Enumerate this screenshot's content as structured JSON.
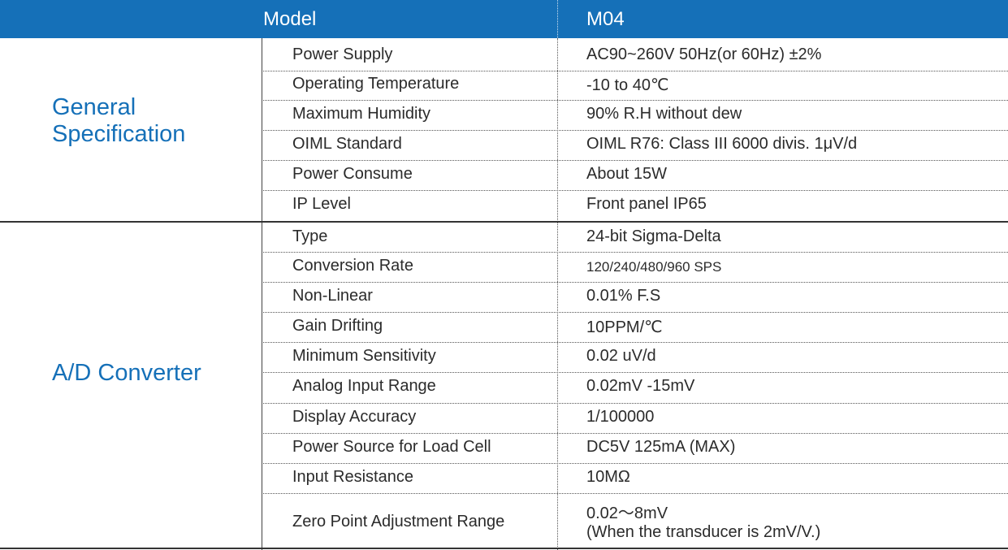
{
  "header": {
    "model_label": "Model",
    "model_value": "M04"
  },
  "sections": [
    {
      "title_line1": "General",
      "title_line2": "Specification",
      "rows": [
        {
          "label": "Power Supply",
          "value": "AC90~260V 50Hz(or 60Hz) ±2%"
        },
        {
          "label": "Operating Temperature",
          "value": "-10 to 40℃"
        },
        {
          "label": "Maximum Humidity",
          "value": "90% R.H without dew"
        },
        {
          "label": "OIML Standard",
          "value": "OIML R76: Class III 6000 divis. 1μV/d"
        },
        {
          "label": "Power Consume",
          "value": "About 15W"
        },
        {
          "label": "IP Level",
          "value": "Front panel IP65"
        }
      ]
    },
    {
      "title_line1": "A/D Converter",
      "rows": [
        {
          "label": "Type",
          "value": "24-bit Sigma-Delta"
        },
        {
          "label": "Conversion Rate",
          "value": "120/240/480/960 SPS"
        },
        {
          "label": "Non-Linear",
          "value": "0.01% F.S"
        },
        {
          "label": "Gain Drifting",
          "value": "10PPM/℃"
        },
        {
          "label": "Minimum Sensitivity",
          "value": "0.02 uV/d"
        },
        {
          "label": "Analog Input Range",
          "value": "0.02mV -15mV"
        },
        {
          "label": "Display Accuracy",
          "value": "1/100000"
        },
        {
          "label": "Power Source for Load Cell",
          "value": "DC5V 125mA (MAX)"
        },
        {
          "label": "Input Resistance",
          "value": "10MΩ"
        },
        {
          "label": "Zero Point Adjustment Range",
          "value": "0.02～8mV",
          "value_line2": "(When the transducer is 2mV/V.)"
        }
      ]
    }
  ]
}
